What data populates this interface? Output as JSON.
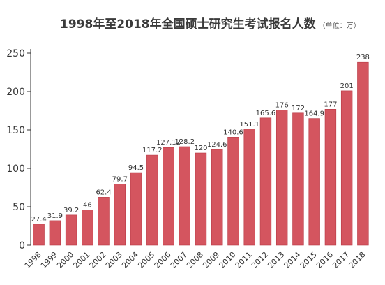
{
  "chart_data": {
    "type": "bar",
    "title": "1998年至2018年全国硕士研究生考试报名人数",
    "unit_note": "（单位：万）",
    "categories": [
      "1998",
      "1999",
      "2000",
      "2001",
      "2002",
      "2003",
      "2004",
      "2005",
      "2006",
      "2007",
      "2008",
      "2009",
      "2010",
      "2011",
      "2012",
      "2013",
      "2014",
      "2015",
      "2016",
      "2017",
      "2018"
    ],
    "values": [
      27.4,
      31.9,
      39.2,
      46,
      62.4,
      79.7,
      94.5,
      117.2,
      127.12,
      128.2,
      120,
      124.6,
      140.6,
      151.1,
      165.6,
      176,
      172,
      164.9,
      177,
      201,
      238
    ],
    "value_labels": [
      "27.4",
      "31.9",
      "39.2",
      "46",
      "62.4",
      "79.7",
      "94.5",
      "117.2",
      "127.12",
      "128.2",
      "120",
      "124.6",
      "140.6",
      "151.1",
      "165.6",
      "176",
      "172",
      "164.9",
      "177",
      "201",
      "238"
    ],
    "yticks": [
      "0",
      "50",
      "100",
      "150",
      "200",
      "250"
    ],
    "ylim": [
      0,
      250
    ],
    "grid": false,
    "colors": {
      "bar": "#d4555f",
      "bar_stroke": "#b83a45",
      "axis": "#333333"
    }
  }
}
